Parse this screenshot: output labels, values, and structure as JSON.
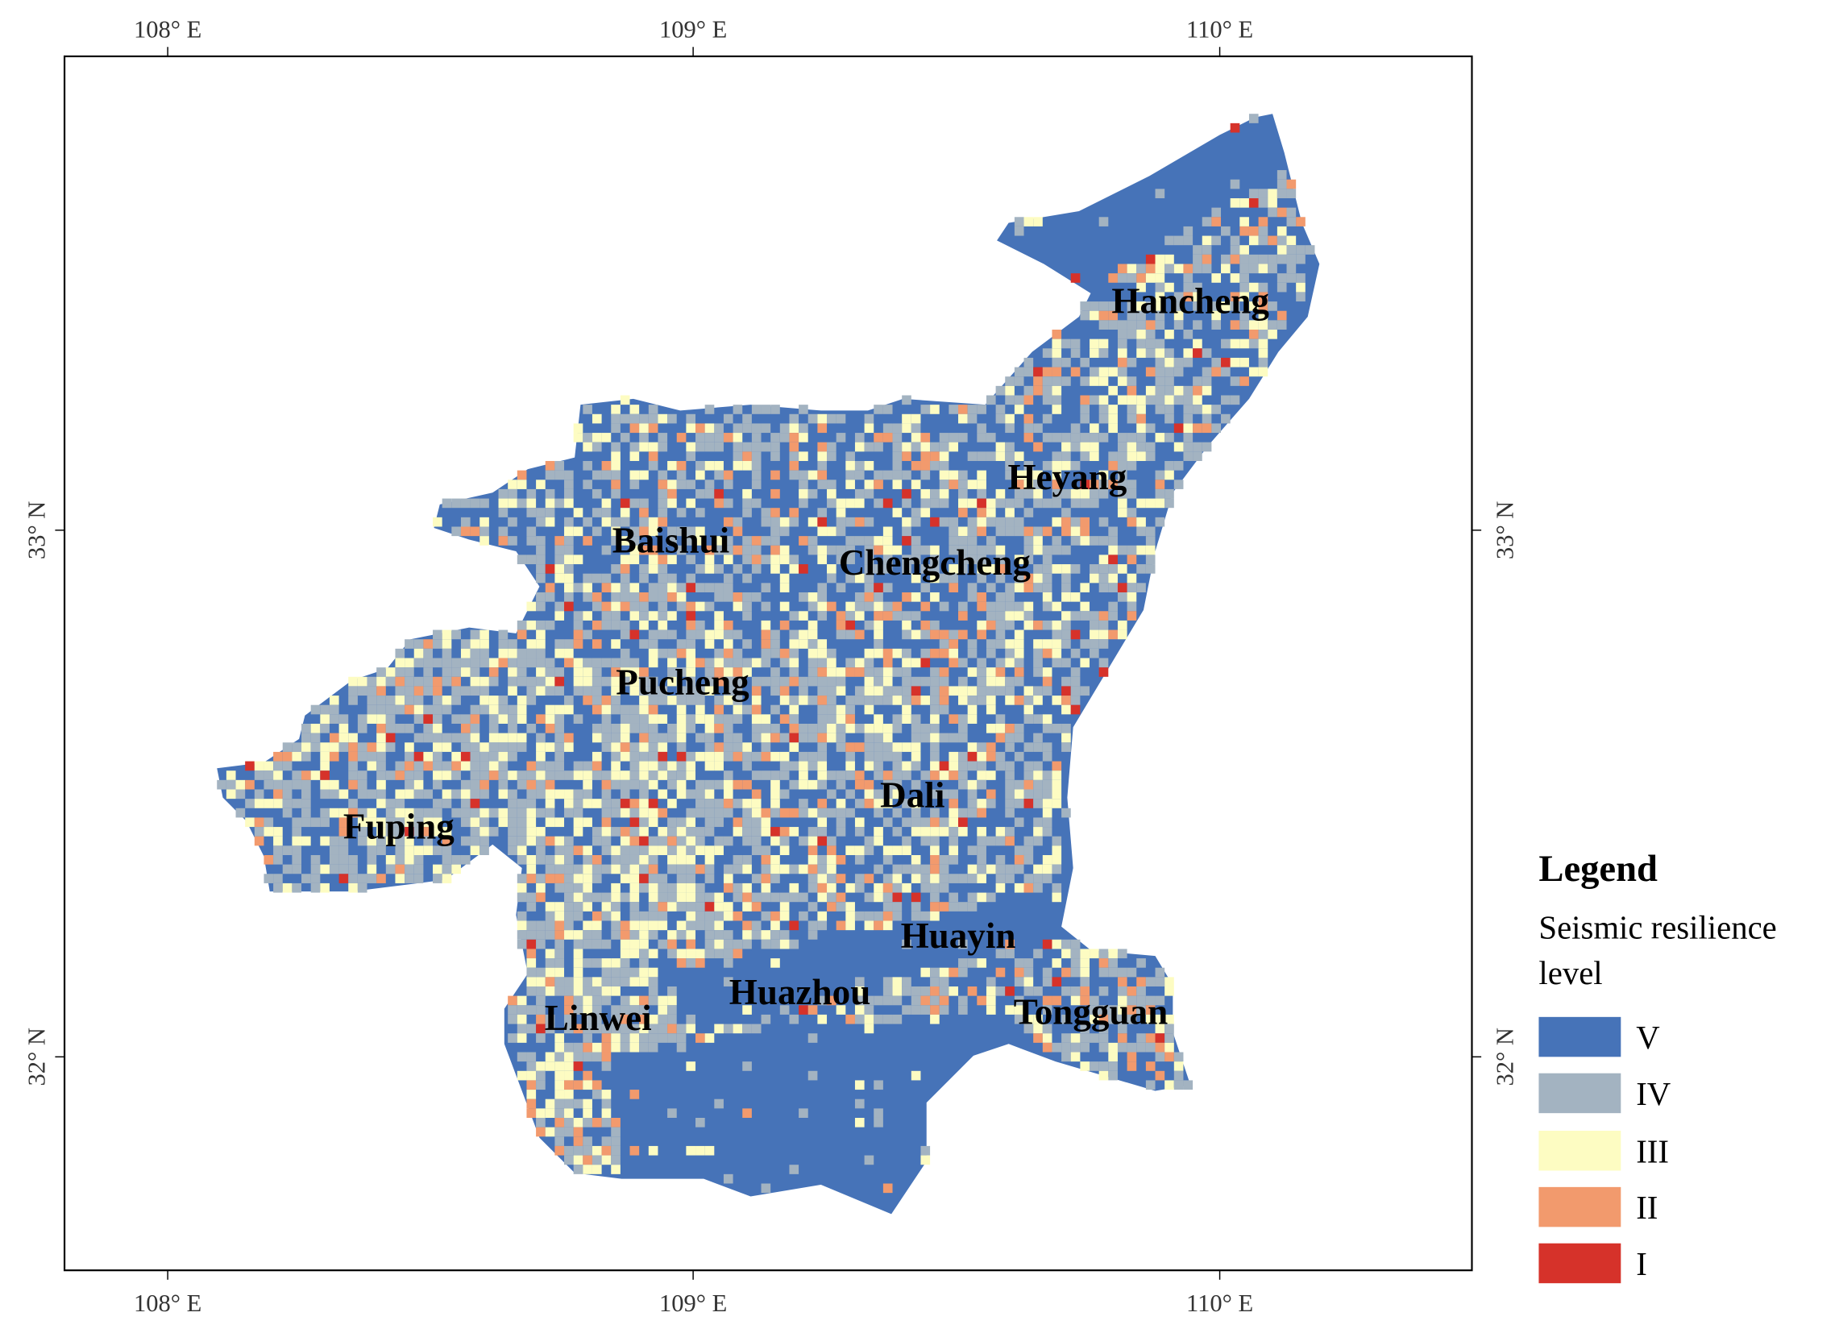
{
  "map": {
    "x_ticks": [
      "108° E",
      "109° E",
      "110° E"
    ],
    "y_ticks": [
      "33° N",
      "32° N"
    ],
    "places": [
      "Hancheng",
      "Heyang",
      "Baishui",
      "Chengcheng",
      "Pucheng",
      "Dali",
      "Fuping",
      "Huayin",
      "Huazhou",
      "Linwei",
      "Tongguan"
    ],
    "legend": {
      "title": "Legend",
      "subtitle": [
        "Seismic resilience",
        "level"
      ],
      "items": [
        {
          "label": "V",
          "color": "#4673b8"
        },
        {
          "label": "IV",
          "color": "#a3b3c1"
        },
        {
          "label": "III",
          "color": "#fdfcc2"
        },
        {
          "label": "II",
          "color": "#f29a6d"
        },
        {
          "label": "I",
          "color": "#d6322a"
        }
      ]
    }
  }
}
